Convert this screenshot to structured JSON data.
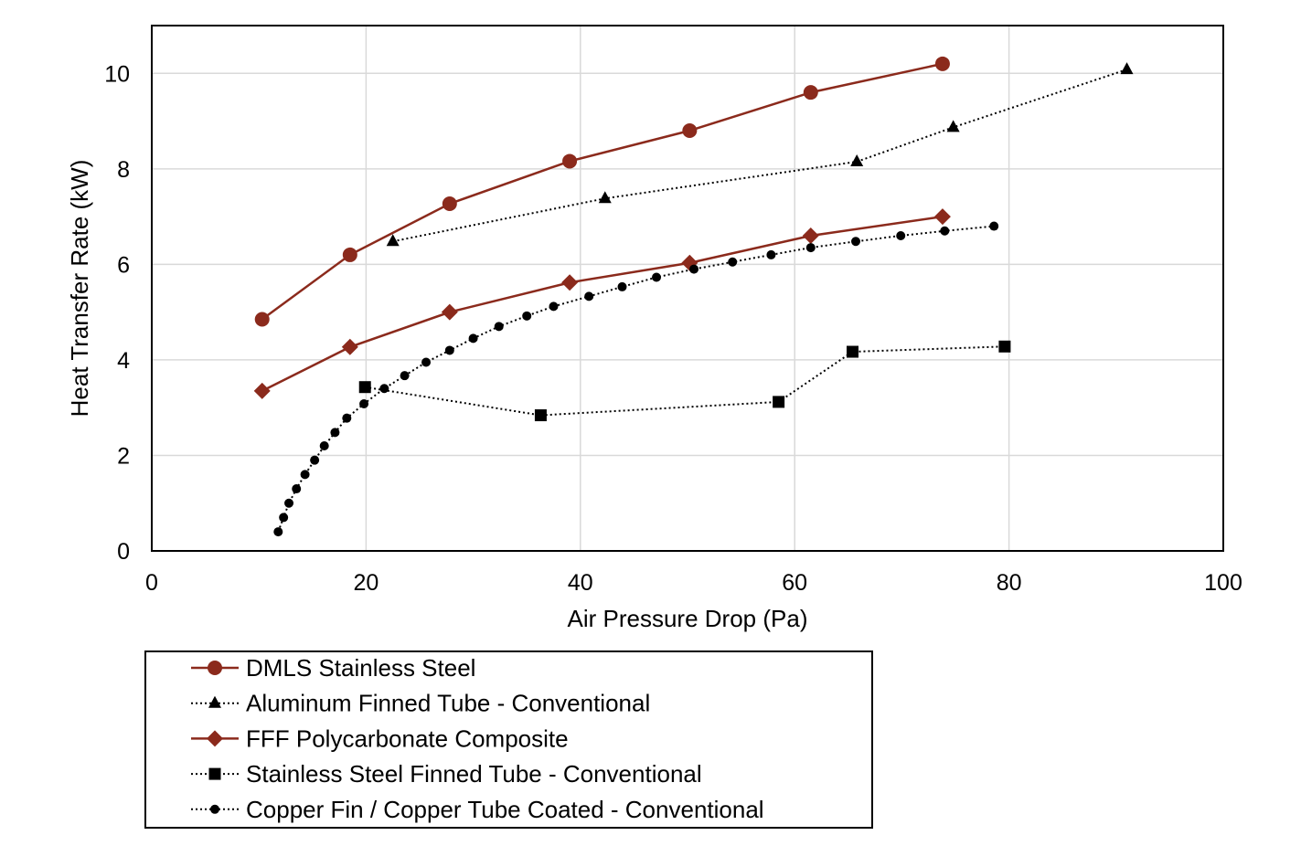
{
  "chart_data": {
    "type": "line",
    "title": "",
    "xlabel": "Air Pressure Drop (Pa)",
    "ylabel": "Heat Transfer Rate (kW)",
    "xlim": [
      0,
      100
    ],
    "ylim": [
      0,
      11
    ],
    "x_ticks": [
      0,
      20,
      40,
      60,
      80,
      100
    ],
    "y_ticks": [
      0,
      2,
      4,
      6,
      8,
      10
    ],
    "grid": true,
    "legend_position": "below",
    "series": [
      {
        "name": "DMLS Stainless Steel",
        "color": "#8b2a1c",
        "line": "solid",
        "marker": "circle",
        "points": [
          [
            10.3,
            4.85
          ],
          [
            18.5,
            6.2
          ],
          [
            27.8,
            7.27
          ],
          [
            39.0,
            8.16
          ],
          [
            50.2,
            8.8
          ],
          [
            61.5,
            9.6
          ],
          [
            73.8,
            10.2
          ]
        ]
      },
      {
        "name": "Aluminum Finned Tube - Conventional",
        "color": "#000000",
        "line": "dotted",
        "marker": "triangle",
        "points": [
          [
            22.5,
            6.48
          ],
          [
            42.3,
            7.38
          ],
          [
            65.8,
            8.15
          ],
          [
            74.8,
            8.87
          ],
          [
            91.0,
            10.08
          ]
        ]
      },
      {
        "name": "FFF Polycarbonate Composite",
        "color": "#8b2a1c",
        "line": "solid",
        "marker": "diamond",
        "points": [
          [
            10.3,
            3.35
          ],
          [
            18.5,
            4.27
          ],
          [
            27.8,
            5.0
          ],
          [
            39.0,
            5.62
          ],
          [
            50.2,
            6.03
          ],
          [
            61.5,
            6.6
          ],
          [
            73.8,
            7.0
          ]
        ]
      },
      {
        "name": "Stainless Steel Finned Tube - Conventional",
        "color": "#000000",
        "line": "dotted",
        "marker": "square",
        "points": [
          [
            19.9,
            3.43
          ],
          [
            36.3,
            2.84
          ],
          [
            58.5,
            3.12
          ],
          [
            65.4,
            4.17
          ],
          [
            79.6,
            4.28
          ]
        ]
      },
      {
        "name": "Copper Fin / Copper Tube Coated - Conventional",
        "color": "#000000",
        "line": "dotted",
        "marker": "circle-small",
        "points": [
          [
            11.8,
            0.4
          ],
          [
            12.3,
            0.7
          ],
          [
            12.8,
            1.0
          ],
          [
            13.5,
            1.3
          ],
          [
            14.3,
            1.6
          ],
          [
            15.2,
            1.9
          ],
          [
            16.1,
            2.2
          ],
          [
            17.1,
            2.48
          ],
          [
            18.2,
            2.78
          ],
          [
            19.8,
            3.08
          ],
          [
            21.7,
            3.4
          ],
          [
            23.6,
            3.67
          ],
          [
            25.6,
            3.95
          ],
          [
            27.8,
            4.2
          ],
          [
            30.0,
            4.45
          ],
          [
            32.4,
            4.7
          ],
          [
            35.0,
            4.92
          ],
          [
            37.5,
            5.12
          ],
          [
            40.8,
            5.33
          ],
          [
            43.9,
            5.53
          ],
          [
            47.1,
            5.73
          ],
          [
            50.6,
            5.9
          ],
          [
            54.2,
            6.05
          ],
          [
            57.8,
            6.2
          ],
          [
            61.5,
            6.35
          ],
          [
            65.7,
            6.48
          ],
          [
            69.9,
            6.6
          ],
          [
            74.0,
            6.7
          ],
          [
            78.6,
            6.8
          ]
        ]
      }
    ]
  }
}
